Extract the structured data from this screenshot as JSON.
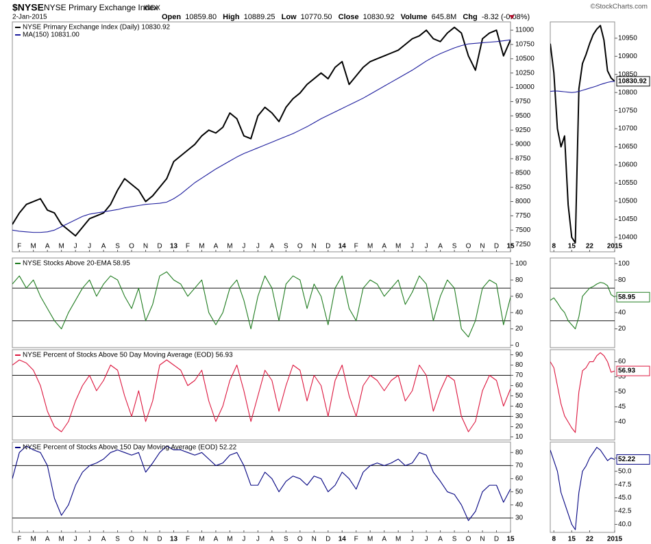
{
  "header": {
    "symbol": "$NYSE",
    "name": "NYSE Primary Exchange Index",
    "exchange": "INDX",
    "date": "2-Jan-2015",
    "source": "©StockCharts.com",
    "quote": [
      {
        "label": "Open",
        "value": "10859.80"
      },
      {
        "label": "High",
        "value": "10889.25"
      },
      {
        "label": "Low",
        "value": "10770.50"
      },
      {
        "label": "Close",
        "value": "10830.92"
      },
      {
        "label": "Volume",
        "value": "645.8M"
      },
      {
        "label": "Chg",
        "value": "-8.32 (-0.08%)"
      }
    ]
  },
  "chart_data": [
    {
      "type": "line",
      "categories": [
        null,
        "F",
        null,
        "M",
        null,
        "A",
        null,
        "M",
        null,
        "J",
        null,
        "J",
        null,
        "A",
        null,
        "S",
        null,
        "O",
        null,
        "N",
        null,
        "D",
        null,
        "13",
        null,
        "F",
        null,
        "M",
        null,
        "A",
        null,
        "M",
        null,
        "J",
        null,
        "J",
        null,
        "A",
        null,
        "S",
        null,
        "O",
        null,
        "N",
        null,
        "D",
        null,
        "14",
        null,
        "F",
        null,
        "M",
        null,
        "A",
        null,
        "M",
        null,
        "J",
        null,
        "J",
        null,
        "A",
        null,
        "S",
        null,
        "O",
        null,
        "N",
        null,
        "D",
        null,
        "15"
      ],
      "series": [
        {
          "name": "NYSE Primary Exchange Index (Daily) 10830.92",
          "color": "#000000",
          "values": [
            7600,
            7800,
            7950,
            8000,
            8050,
            7850,
            7800,
            7600,
            7500,
            7400,
            7550,
            7700,
            7750,
            7800,
            7950,
            8200,
            8400,
            8300,
            8200,
            8000,
            8100,
            8250,
            8400,
            8700,
            8800,
            8900,
            9000,
            9150,
            9250,
            9200,
            9300,
            9550,
            9450,
            9150,
            9100,
            9500,
            9650,
            9550,
            9400,
            9650,
            9800,
            9900,
            10050,
            10150,
            10250,
            10150,
            10350,
            10450,
            10050,
            10200,
            10350,
            10450,
            10500,
            10550,
            10600,
            10650,
            10750,
            10850,
            10900,
            11000,
            10850,
            10800,
            10950,
            11050,
            10950,
            10550,
            10300,
            10850,
            10950,
            11000,
            10550,
            10830.92
          ]
        },
        {
          "name": "MA(150) 10831.00",
          "color": "#1a1a9c",
          "values": [
            7500,
            7480,
            7470,
            7460,
            7460,
            7470,
            7500,
            7560,
            7620,
            7680,
            7740,
            7780,
            7800,
            7820,
            7840,
            7860,
            7890,
            7910,
            7930,
            7950,
            7960,
            7970,
            7990,
            8050,
            8130,
            8230,
            8330,
            8410,
            8490,
            8570,
            8640,
            8710,
            8780,
            8840,
            8890,
            8940,
            8990,
            9040,
            9090,
            9140,
            9190,
            9250,
            9310,
            9380,
            9450,
            9510,
            9570,
            9630,
            9690,
            9750,
            9810,
            9880,
            9950,
            10020,
            10090,
            10160,
            10230,
            10300,
            10380,
            10460,
            10530,
            10590,
            10640,
            10690,
            10730,
            10760,
            10770,
            10780,
            10790,
            10800,
            10815,
            10831
          ]
        }
      ],
      "ylim": [
        7120,
        11145
      ],
      "yticks": [
        7250,
        7500,
        7750,
        8000,
        8250,
        8500,
        8750,
        9000,
        9250,
        9500,
        9750,
        10000,
        10250,
        10500,
        10750,
        11000
      ]
    },
    {
      "type": "line",
      "categories": [
        null,
        "8",
        null,
        null,
        null,
        null,
        "15",
        null,
        null,
        null,
        null,
        "22",
        null,
        null,
        null,
        null,
        null,
        null,
        "2015"
      ],
      "series": [
        {
          "color": "#000000",
          "values": [
            10935,
            10855,
            10700,
            10650,
            10680,
            10490,
            10400,
            10385,
            10810,
            10880,
            10905,
            10935,
            10960,
            10975,
            10985,
            10945,
            10860,
            10840,
            10830.92
          ]
        },
        {
          "color": "#1a1a9c",
          "values": [
            10803,
            10804,
            10804,
            10803,
            10802,
            10801,
            10800,
            10801,
            10803,
            10806,
            10809,
            10812,
            10815,
            10818,
            10822,
            10825,
            10828,
            10830,
            10831
          ]
        }
      ],
      "ylim": [
        10360,
        10995
      ],
      "yticks": [
        10400,
        10450,
        10500,
        10550,
        10600,
        10650,
        10700,
        10750,
        10800,
        10850,
        10900,
        10950
      ]
    },
    {
      "type": "line",
      "series": [
        {
          "name": "NYSE Stocks Above 20-EMA 58.95",
          "color": "#1e7b1e",
          "values": [
            75,
            85,
            70,
            80,
            60,
            45,
            30,
            20,
            40,
            55,
            70,
            80,
            60,
            75,
            85,
            80,
            60,
            45,
            70,
            30,
            50,
            85,
            90,
            80,
            75,
            60,
            70,
            80,
            40,
            25,
            40,
            70,
            80,
            55,
            20,
            60,
            85,
            70,
            30,
            75,
            85,
            80,
            45,
            75,
            60,
            25,
            70,
            85,
            45,
            30,
            70,
            80,
            75,
            60,
            70,
            80,
            50,
            65,
            85,
            75,
            30,
            60,
            80,
            70,
            20,
            10,
            30,
            70,
            80,
            75,
            25,
            58.95
          ]
        }
      ],
      "ylim": [
        -3,
        107
      ],
      "yticks": [
        0,
        20,
        40,
        60,
        80,
        100
      ],
      "hlines": [
        70,
        30
      ]
    },
    {
      "type": "line",
      "series": [
        {
          "color": "#1e7b1e",
          "values": [
            55,
            58,
            52,
            45,
            40,
            30,
            25,
            20,
            35,
            60,
            65,
            70,
            72,
            75,
            77,
            76,
            73,
            62,
            58.95
          ]
        }
      ],
      "ylim": [
        -3,
        107
      ],
      "yticks": [
        20,
        40,
        60,
        80,
        100
      ],
      "hlines": [
        70,
        30
      ]
    },
    {
      "type": "line",
      "series": [
        {
          "name": "NYSE Percent of Stocks Above 50 Day Moving Average (EOD) 56.93",
          "color": "#dc143c",
          "values": [
            80,
            85,
            82,
            75,
            60,
            35,
            20,
            15,
            25,
            45,
            60,
            70,
            55,
            65,
            80,
            75,
            50,
            30,
            55,
            25,
            45,
            80,
            85,
            80,
            75,
            60,
            65,
            75,
            45,
            25,
            40,
            65,
            80,
            55,
            25,
            50,
            75,
            65,
            35,
            60,
            80,
            75,
            45,
            70,
            60,
            30,
            65,
            80,
            50,
            30,
            60,
            70,
            65,
            55,
            65,
            70,
            45,
            55,
            80,
            70,
            35,
            55,
            70,
            65,
            30,
            15,
            25,
            55,
            70,
            65,
            40,
            56.93
          ]
        }
      ],
      "ylim": [
        7,
        95
      ],
      "yticks": [
        10,
        20,
        30,
        40,
        50,
        60,
        70,
        80,
        90
      ],
      "hlines": [
        70,
        30
      ]
    },
    {
      "type": "line",
      "series": [
        {
          "color": "#dc143c",
          "values": [
            60,
            58,
            52,
            46,
            42,
            40,
            38,
            36.5,
            50,
            57,
            58,
            60,
            60,
            62,
            63,
            62,
            60,
            56.5,
            56.93
          ]
        }
      ],
      "ylim": [
        34,
        64
      ],
      "yticks": [
        40,
        45,
        50,
        55,
        60
      ]
    },
    {
      "type": "line",
      "categories": [
        null,
        "F",
        null,
        "M",
        null,
        "A",
        null,
        "M",
        null,
        "J",
        null,
        "J",
        null,
        "A",
        null,
        "S",
        null,
        "O",
        null,
        "N",
        null,
        "D",
        null,
        "13",
        null,
        "F",
        null,
        "M",
        null,
        "A",
        null,
        "M",
        null,
        "J",
        null,
        "J",
        null,
        "A",
        null,
        "S",
        null,
        "O",
        null,
        "N",
        null,
        "D",
        null,
        "14",
        null,
        "F",
        null,
        "M",
        null,
        "A",
        null,
        "M",
        null,
        "J",
        null,
        "J",
        null,
        "A",
        null,
        "S",
        null,
        "O",
        null,
        "N",
        null,
        "D",
        null,
        "15"
      ],
      "series": [
        {
          "name": "NYSE Percent of Stocks Above 150 Day Moving Average (EOD) 52.22",
          "color": "#000080",
          "values": [
            60,
            80,
            85,
            82,
            80,
            70,
            45,
            32,
            40,
            55,
            65,
            70,
            72,
            75,
            80,
            82,
            80,
            78,
            80,
            65,
            72,
            80,
            85,
            82,
            82,
            80,
            78,
            80,
            75,
            70,
            72,
            78,
            80,
            70,
            55,
            55,
            65,
            60,
            50,
            58,
            62,
            60,
            55,
            62,
            60,
            50,
            55,
            65,
            60,
            52,
            65,
            70,
            72,
            70,
            72,
            75,
            70,
            72,
            80,
            78,
            65,
            58,
            50,
            48,
            40,
            28,
            35,
            50,
            55,
            55,
            42,
            52.22
          ]
        }
      ],
      "ylim": [
        19,
        88
      ],
      "yticks": [
        30,
        40,
        50,
        60,
        70,
        80
      ],
      "hlines": [
        70,
        30
      ]
    },
    {
      "type": "line",
      "categories": [
        null,
        "8",
        null,
        null,
        null,
        null,
        "15",
        null,
        null,
        null,
        null,
        "22",
        null,
        null,
        null,
        null,
        null,
        null,
        "2015"
      ],
      "series": [
        {
          "color": "#000080",
          "values": [
            54,
            52,
            50,
            46,
            44,
            42,
            40,
            39,
            46,
            50,
            51,
            52.5,
            53.5,
            54.5,
            54,
            53,
            52,
            52.5,
            52.22
          ]
        }
      ],
      "ylim": [
        38.5,
        55.5
      ],
      "yticks": [
        {
          "value": 40,
          "label": "40.0"
        },
        42.5,
        {
          "value": 45,
          "label": "45.0"
        },
        47.5,
        {
          "value": 50,
          "label": "50.0"
        },
        52.5
      ]
    }
  ]
}
